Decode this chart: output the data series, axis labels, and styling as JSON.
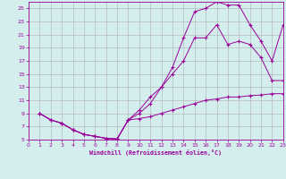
{
  "xlabel": "Windchill (Refroidissement éolien,°C)",
  "background_color": "#d4eeee",
  "grid_color": "#b0b0b0",
  "line_color": "#990099",
  "xlim": [
    0,
    23
  ],
  "ylim": [
    5,
    26
  ],
  "xticks": [
    0,
    1,
    2,
    3,
    4,
    5,
    6,
    7,
    8,
    9,
    10,
    11,
    12,
    13,
    14,
    15,
    16,
    17,
    18,
    19,
    20,
    21,
    22,
    23
  ],
  "yticks": [
    5,
    7,
    9,
    11,
    13,
    15,
    17,
    19,
    21,
    23,
    25
  ],
  "curve1_x": [
    1,
    2,
    3,
    4,
    5,
    6,
    7,
    8,
    9,
    10,
    11,
    12,
    13,
    14,
    15,
    16,
    17,
    18,
    19,
    20,
    21,
    22,
    23
  ],
  "curve1_y": [
    9,
    8,
    7.5,
    6.5,
    5.8,
    5.5,
    5.2,
    5.1,
    8.0,
    8.2,
    8.5,
    9.0,
    9.5,
    10.0,
    10.5,
    11.0,
    11.2,
    11.5,
    11.5,
    11.7,
    11.8,
    12.0,
    12.0
  ],
  "curve2_x": [
    1,
    2,
    3,
    4,
    5,
    6,
    7,
    8,
    9,
    10,
    11,
    12,
    13,
    14,
    15,
    16,
    17,
    18,
    19,
    20,
    21,
    22,
    23
  ],
  "curve2_y": [
    9,
    8,
    7.5,
    6.5,
    5.8,
    5.5,
    5.2,
    5.1,
    8.0,
    9.5,
    11.5,
    13.0,
    15.0,
    17.0,
    20.5,
    20.5,
    22.5,
    19.5,
    20.0,
    19.5,
    17.5,
    14.0,
    14.0
  ],
  "curve3_x": [
    1,
    2,
    3,
    4,
    5,
    6,
    7,
    8,
    9,
    10,
    11,
    12,
    13,
    14,
    15,
    16,
    17,
    18,
    19,
    20,
    21,
    22,
    23
  ],
  "curve3_y": [
    9,
    8,
    7.5,
    6.5,
    5.8,
    5.5,
    5.2,
    5.1,
    8.0,
    9.0,
    10.5,
    13.0,
    16.0,
    20.5,
    24.5,
    25.0,
    26.0,
    25.5,
    25.5,
    22.5,
    20.0,
    17.0,
    22.5
  ]
}
